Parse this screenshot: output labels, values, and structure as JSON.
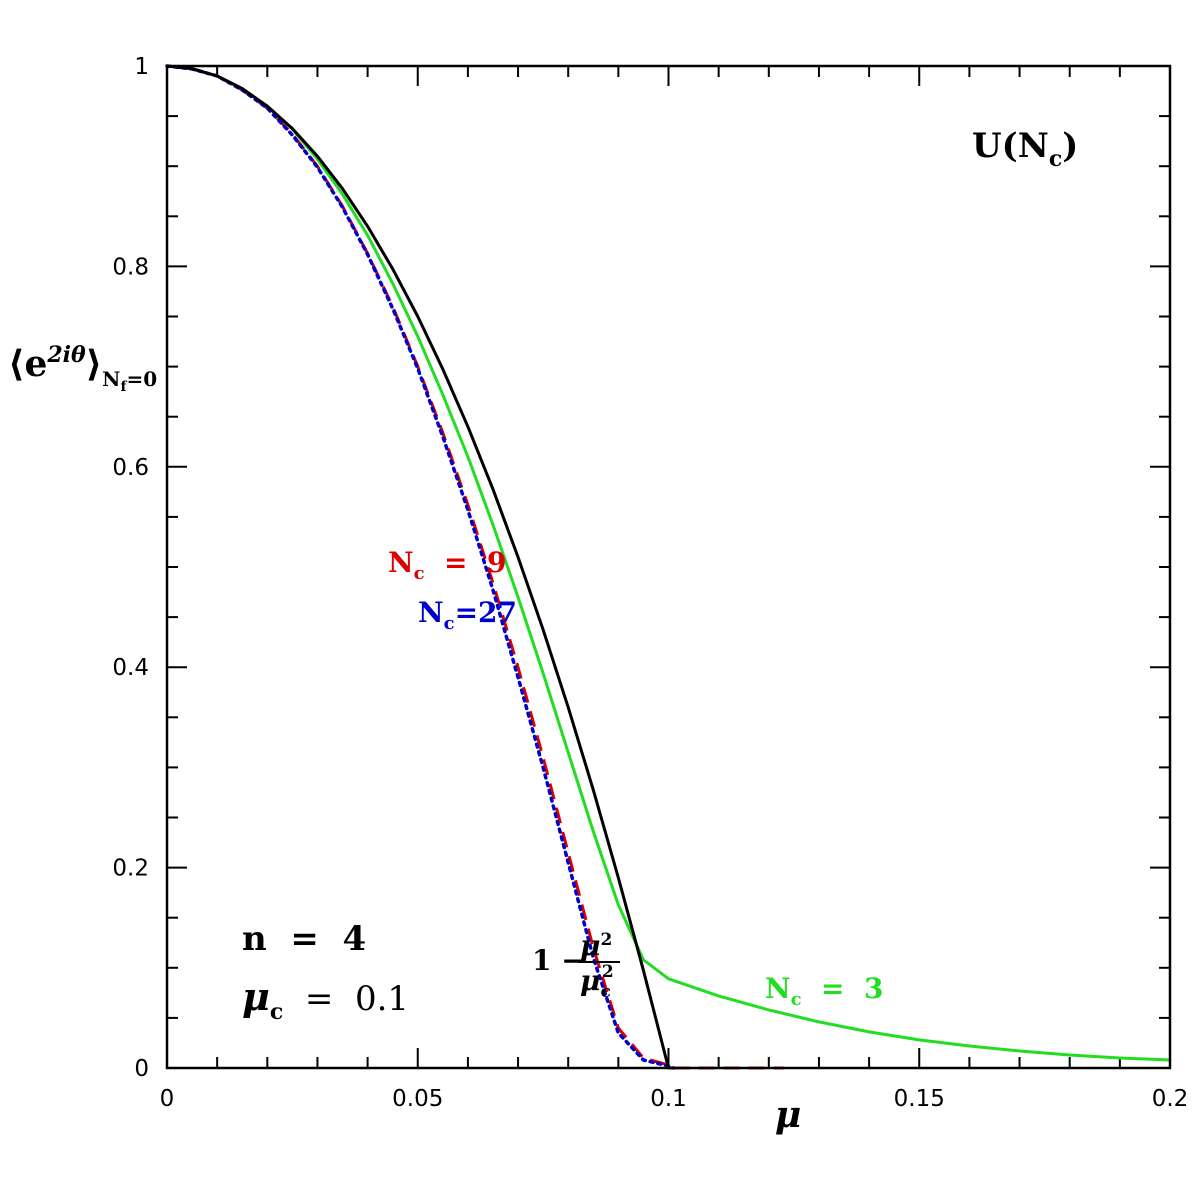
{
  "chart_data": {
    "type": "line",
    "xlim": [
      0,
      0.2
    ],
    "ylim": [
      0,
      1
    ],
    "x_ticks": [
      "0",
      "0.05",
      "0.1",
      "0.15",
      "0.2"
    ],
    "y_ticks": [
      "0",
      "0.2",
      "0.4",
      "0.6",
      "0.8",
      "1"
    ],
    "xlabel": "μ",
    "ylabel": {
      "main": "⟨e",
      "sup": "2iθ",
      "close": "⟩",
      "sub": "N",
      "sub_sub": "f",
      "sub_rest": "=0"
    },
    "annotations": {
      "group": "U(N",
      "group_sub": "c",
      "group_close": ")",
      "n_label": "n  =  4",
      "mu_c_main": "μ",
      "mu_c_sub": "c",
      "mu_c_rest": "  =  0.1",
      "formula_one": "1 −",
      "formula_num": "μ",
      "formula_num_sup": "2",
      "formula_den": "μ",
      "formula_den_sub": "c",
      "formula_den_sup": "2"
    },
    "series": [
      {
        "label_main": "N",
        "label_sub": "c",
        "label_rest": "  =  3",
        "color": "#22dd22",
        "style": "solid",
        "x": [
          0,
          0.005,
          0.01,
          0.015,
          0.02,
          0.025,
          0.03,
          0.035,
          0.04,
          0.045,
          0.05,
          0.055,
          0.06,
          0.065,
          0.07,
          0.075,
          0.08,
          0.085,
          0.09,
          0.095,
          0.1,
          0.11,
          0.12,
          0.13,
          0.14,
          0.15,
          0.16,
          0.17,
          0.18,
          0.19,
          0.2
        ],
        "y": [
          1.0,
          0.997,
          0.99,
          0.977,
          0.96,
          0.937,
          0.907,
          0.872,
          0.831,
          0.783,
          0.73,
          0.672,
          0.61,
          0.542,
          0.47,
          0.394,
          0.315,
          0.236,
          0.163,
          0.108,
          0.089,
          0.072,
          0.058,
          0.046,
          0.036,
          0.028,
          0.022,
          0.017,
          0.013,
          0.01,
          0.008
        ]
      },
      {
        "label_main": "N",
        "label_sub": "c",
        "label_rest": "  =  9",
        "color": "#dd0000",
        "style": "dashed",
        "x": [
          0,
          0.005,
          0.01,
          0.015,
          0.02,
          0.025,
          0.03,
          0.035,
          0.04,
          0.045,
          0.05,
          0.055,
          0.06,
          0.065,
          0.07,
          0.075,
          0.08,
          0.085,
          0.09,
          0.095,
          0.1,
          0.101,
          0.11,
          0.123
        ],
        "y": [
          1.0,
          0.997,
          0.99,
          0.976,
          0.958,
          0.932,
          0.9,
          0.86,
          0.813,
          0.76,
          0.7,
          0.634,
          0.562,
          0.484,
          0.4,
          0.31,
          0.215,
          0.12,
          0.04,
          0.01,
          0.003,
          0.0,
          0.0,
          0.0
        ]
      },
      {
        "label_main": "N",
        "label_sub": "c",
        "label_rest": "=27",
        "color": "#0000cc",
        "style": "dotted",
        "x": [
          0,
          0.005,
          0.01,
          0.015,
          0.02,
          0.025,
          0.03,
          0.035,
          0.04,
          0.045,
          0.05,
          0.055,
          0.06,
          0.065,
          0.07,
          0.075,
          0.08,
          0.085,
          0.09,
          0.095,
          0.1,
          0.101
        ],
        "y": [
          1.0,
          0.997,
          0.99,
          0.976,
          0.958,
          0.931,
          0.899,
          0.859,
          0.812,
          0.758,
          0.698,
          0.63,
          0.557,
          0.477,
          0.39,
          0.3,
          0.205,
          0.11,
          0.035,
          0.008,
          0.002,
          0.0
        ]
      },
      {
        "label_main": "",
        "label_sub": "",
        "label_rest": "",
        "color": "#000000",
        "style": "solid",
        "x": [
          0,
          0.005,
          0.01,
          0.015,
          0.02,
          0.025,
          0.03,
          0.035,
          0.04,
          0.045,
          0.05,
          0.055,
          0.06,
          0.065,
          0.07,
          0.075,
          0.08,
          0.085,
          0.09,
          0.095,
          0.1,
          0.101
        ],
        "y": [
          1.0,
          0.9975,
          0.99,
          0.9775,
          0.96,
          0.9375,
          0.91,
          0.8775,
          0.84,
          0.7975,
          0.75,
          0.6975,
          0.64,
          0.5775,
          0.51,
          0.4375,
          0.36,
          0.2775,
          0.19,
          0.0975,
          0.0,
          0.0
        ]
      }
    ]
  }
}
